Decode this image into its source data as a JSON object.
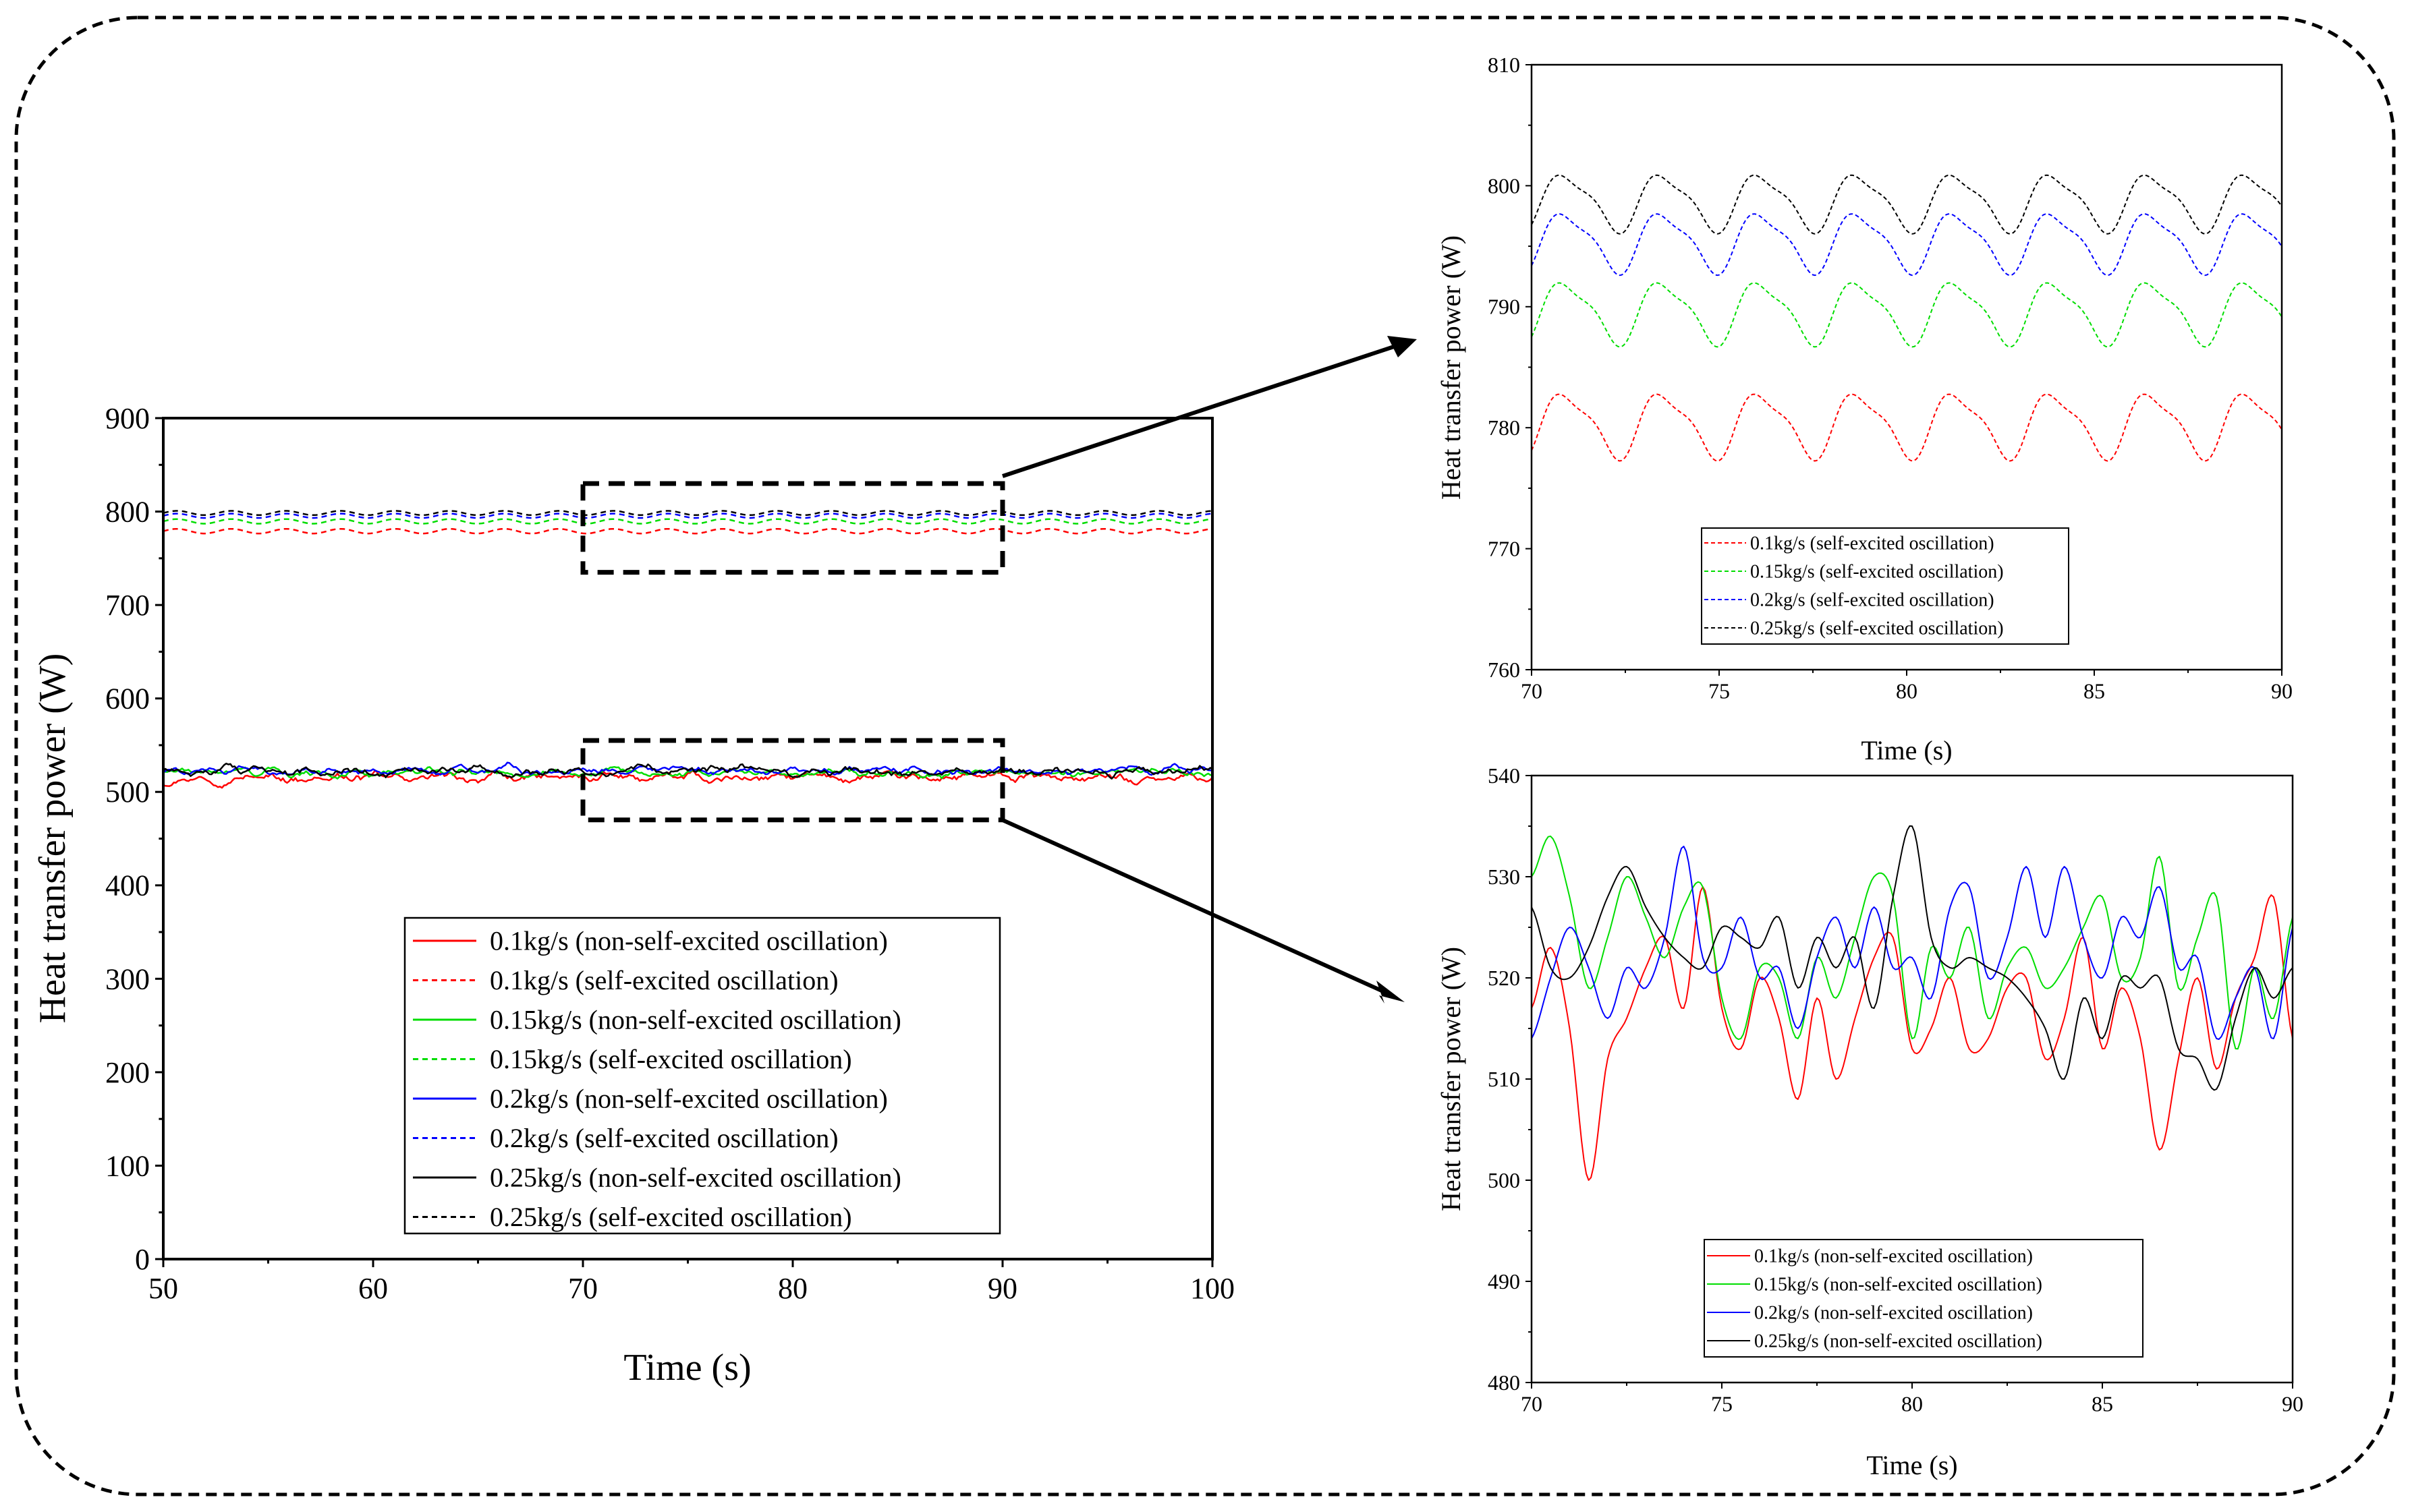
{
  "colors": {
    "red": "#ff0000",
    "green": "#00dd00",
    "blue": "#0000ff",
    "black": "#000000"
  },
  "chart_data": [
    {
      "id": "main",
      "type": "line",
      "xlabel": "Time (s)",
      "ylabel": "Heat transfer power (W)",
      "xlim": [
        50,
        100
      ],
      "ylim": [
        0,
        900
      ],
      "xticks": [
        50,
        60,
        70,
        80,
        90,
        100
      ],
      "yticks": [
        0,
        100,
        200,
        300,
        400,
        500,
        600,
        700,
        800,
        900
      ],
      "legend_position": "bottom-center",
      "series": [
        {
          "name": "0.1kg/s (non-self-excited oscillation)",
          "color": "red",
          "dash": "solid",
          "mean": 515,
          "amplitude": 6
        },
        {
          "name": "0.1kg/s (self-excited oscillation)",
          "color": "red",
          "dash": "dashed",
          "mean": 779,
          "amplitude": 2.5
        },
        {
          "name": "0.15kg/s (non-self-excited oscillation)",
          "color": "green",
          "dash": "solid",
          "mean": 521,
          "amplitude": 5
        },
        {
          "name": "0.15kg/s (self-excited oscillation)",
          "color": "green",
          "dash": "dashed",
          "mean": 789.5,
          "amplitude": 2.5
        },
        {
          "name": "0.2kg/s (non-self-excited oscillation)",
          "color": "blue",
          "dash": "solid",
          "mean": 523,
          "amplitude": 5
        },
        {
          "name": "0.2kg/s (self-excited oscillation)",
          "color": "blue",
          "dash": "dashed",
          "mean": 795.5,
          "amplitude": 2.3
        },
        {
          "name": "0.25kg/s (non-self-excited oscillation)",
          "color": "black",
          "dash": "solid",
          "mean": 522,
          "amplitude": 6
        },
        {
          "name": "0.25kg/s (self-excited oscillation)",
          "color": "black",
          "dash": "dashed",
          "mean": 798.5,
          "amplitude": 2.3
        }
      ],
      "zoom_boxes": [
        {
          "x": [
            70,
            90
          ],
          "y": [
            735,
            830
          ]
        },
        {
          "x": [
            70,
            90
          ],
          "y": [
            470,
            555
          ]
        }
      ]
    },
    {
      "id": "inset-top",
      "type": "line",
      "xlabel": "Time (s)",
      "ylabel": "Heat transfer power (W)",
      "xlim": [
        70,
        90
      ],
      "ylim": [
        760,
        810
      ],
      "xticks": [
        70,
        75,
        80,
        85,
        90
      ],
      "yticks": [
        760,
        770,
        780,
        790,
        800,
        810
      ],
      "legend_position": "bottom-left",
      "series": [
        {
          "name": "0.1kg/s (self-excited oscillation)",
          "color": "red",
          "dash": "dashed",
          "mean": 780.3,
          "amplitude": 2.5,
          "period": 2.6
        },
        {
          "name": "0.15kg/s (self-excited oscillation)",
          "color": "green",
          "dash": "dashed",
          "mean": 789.6,
          "amplitude": 2.4,
          "period": 2.6
        },
        {
          "name": "0.2kg/s (self-excited oscillation)",
          "color": "blue",
          "dash": "dashed",
          "mean": 795.4,
          "amplitude": 2.3,
          "period": 2.6
        },
        {
          "name": "0.25kg/s (self-excited oscillation)",
          "color": "black",
          "dash": "dashed",
          "mean": 798.7,
          "amplitude": 2.2,
          "period": 2.6
        }
      ]
    },
    {
      "id": "inset-bottom",
      "type": "line",
      "xlabel": "Time (s)",
      "ylabel": "Heat transfer power (W)",
      "xlim": [
        70,
        90
      ],
      "ylim": [
        480,
        540
      ],
      "xticks": [
        70,
        75,
        80,
        85,
        90
      ],
      "yticks": [
        480,
        490,
        500,
        510,
        520,
        530,
        540
      ],
      "legend_position": "bottom-center",
      "series": [
        {
          "name": "0.1kg/s (non-self-excited oscillation)",
          "color": "red",
          "dash": "solid",
          "x": [
            70,
            70.5,
            71,
            71.5,
            72,
            72.5,
            73,
            73.5,
            74,
            74.5,
            75,
            75.5,
            76,
            76.5,
            77,
            77.5,
            78,
            78.5,
            79,
            79.5,
            80,
            80.5,
            81,
            81.5,
            82,
            82.5,
            83,
            83.5,
            84,
            84.5,
            85,
            85.5,
            86,
            86.5,
            87,
            87.5,
            88,
            88.5,
            89,
            89.5,
            90
          ],
          "y": [
            517,
            523,
            515,
            500,
            512,
            516,
            521,
            524,
            517,
            529,
            517,
            513,
            520,
            516,
            508,
            518,
            510,
            516,
            522,
            524,
            513,
            515,
            520,
            513,
            514,
            519,
            520,
            512,
            516,
            524,
            513,
            519,
            514,
            503,
            512,
            520,
            511,
            518,
            522,
            528,
            514
          ]
        },
        {
          "name": "0.15kg/s (non-self-excited oscillation)",
          "color": "green",
          "dash": "solid",
          "x": [
            70,
            70.5,
            71,
            71.5,
            72,
            72.5,
            73,
            73.5,
            74,
            74.5,
            75,
            75.5,
            76,
            76.5,
            77,
            77.5,
            78,
            78.5,
            79,
            79.5,
            80,
            80.5,
            81,
            81.5,
            82,
            82.5,
            83,
            83.5,
            84,
            84.5,
            85,
            85.5,
            86,
            86.5,
            87,
            87.5,
            88,
            88.5,
            89,
            89.5,
            90
          ],
          "y": [
            530,
            534,
            528,
            519,
            524,
            530,
            526,
            522,
            527,
            529,
            518,
            514,
            521,
            520,
            514,
            522,
            518,
            524,
            530,
            528,
            514,
            523,
            520,
            525,
            516,
            521,
            523,
            519,
            521,
            525,
            528,
            520,
            522,
            532,
            519,
            524,
            528,
            513,
            521,
            516,
            526
          ]
        },
        {
          "name": "0.2kg/s (non-self-excited oscillation)",
          "color": "blue",
          "dash": "solid",
          "x": [
            70,
            70.5,
            71,
            71.5,
            72,
            72.5,
            73,
            73.5,
            74,
            74.5,
            75,
            75.5,
            76,
            76.5,
            77,
            77.5,
            78,
            78.5,
            79,
            79.5,
            80,
            80.5,
            81,
            81.5,
            82,
            82.5,
            83,
            83.5,
            84,
            84.5,
            85,
            85.5,
            86,
            86.5,
            87,
            87.5,
            88,
            88.5,
            89,
            89.5,
            90
          ],
          "y": [
            514,
            520,
            525,
            521,
            516,
            521,
            519,
            524,
            533,
            522,
            521,
            526,
            520,
            521,
            515,
            522,
            526,
            521,
            527,
            521,
            522,
            518,
            527,
            529,
            520,
            524,
            531,
            524,
            531,
            524,
            520,
            526,
            524,
            529,
            521,
            522,
            514,
            518,
            521,
            514,
            525
          ]
        },
        {
          "name": "0.25kg/s (non-self-excited oscillation)",
          "color": "black",
          "dash": "solid",
          "x": [
            70,
            70.5,
            71,
            71.5,
            72,
            72.5,
            73,
            73.5,
            74,
            74.5,
            75,
            75.5,
            76,
            76.5,
            77,
            77.5,
            78,
            78.5,
            79,
            79.5,
            80,
            80.5,
            81,
            81.5,
            82,
            82.5,
            83,
            83.5,
            84,
            84.5,
            85,
            85.5,
            86,
            86.5,
            87,
            87.5,
            88,
            88.5,
            89,
            89.5,
            90
          ],
          "y": [
            527,
            521,
            520,
            523,
            528,
            531,
            527,
            524,
            522,
            521,
            525,
            524,
            523,
            526,
            519,
            524,
            521,
            524,
            517,
            528,
            535,
            524,
            521,
            522,
            521,
            520,
            518,
            515,
            510,
            518,
            514,
            520,
            519,
            520,
            513,
            512,
            509,
            516,
            521,
            518,
            521
          ]
        }
      ]
    }
  ]
}
